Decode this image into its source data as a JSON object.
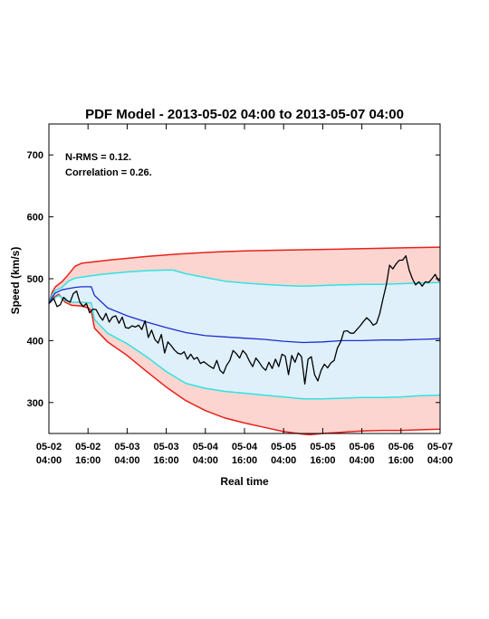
{
  "chart_data": {
    "type": "line",
    "title": "PDF Model - 2013-05-02 04:00 to 2013-05-07 04:00",
    "xlabel": "Real time",
    "ylabel": "Speed (km/s)",
    "xlim_hours": [
      0,
      120
    ],
    "ylim": [
      250,
      750
    ],
    "yticks": [
      300,
      400,
      500,
      600,
      700
    ],
    "xticks": [
      {
        "h": 0,
        "l1": "05-02",
        "l2": "04:00"
      },
      {
        "h": 12,
        "l1": "05-02",
        "l2": "16:00"
      },
      {
        "h": 24,
        "l1": "05-03",
        "l2": "04:00"
      },
      {
        "h": 36,
        "l1": "05-03",
        "l2": "16:00"
      },
      {
        "h": 48,
        "l1": "05-04",
        "l2": "04:00"
      },
      {
        "h": 60,
        "l1": "05-04",
        "l2": "16:00"
      },
      {
        "h": 72,
        "l1": "05-05",
        "l2": "04:00"
      },
      {
        "h": 84,
        "l1": "05-05",
        "l2": "16:00"
      },
      {
        "h": 96,
        "l1": "05-06",
        "l2": "04:00"
      },
      {
        "h": 108,
        "l1": "05-06",
        "l2": "16:00"
      },
      {
        "h": 120,
        "l1": "05-07",
        "l2": "04:00"
      }
    ],
    "annotations": [
      "N-RMS = 0.12.",
      "Correlation = 0.26."
    ],
    "colors": {
      "outer_band": "#fdd5d0",
      "inner_band": "#dff0fb",
      "outer_line": "#e8211b",
      "inner_line": "#2fe3e3",
      "median": "#1a2fcf",
      "observed": "#000000"
    },
    "bands": {
      "upper_outer": [
        [
          0,
          460
        ],
        [
          1,
          478
        ],
        [
          2,
          487
        ],
        [
          4,
          495
        ],
        [
          6,
          507
        ],
        [
          8,
          520
        ],
        [
          10,
          525
        ],
        [
          20,
          531
        ],
        [
          30,
          536
        ],
        [
          40,
          540
        ],
        [
          50,
          543
        ],
        [
          60,
          545
        ],
        [
          70,
          546
        ],
        [
          80,
          547
        ],
        [
          90,
          548
        ],
        [
          100,
          549
        ],
        [
          110,
          550
        ],
        [
          120,
          551
        ]
      ],
      "lower_outer": [
        [
          0,
          460
        ],
        [
          1,
          468
        ],
        [
          3,
          475
        ],
        [
          5,
          462
        ],
        [
          7,
          457
        ],
        [
          10,
          456
        ],
        [
          12,
          453
        ],
        [
          13,
          448
        ],
        [
          14,
          420
        ],
        [
          18,
          398
        ],
        [
          24,
          376
        ],
        [
          30,
          350
        ],
        [
          36,
          325
        ],
        [
          42,
          303
        ],
        [
          48,
          287
        ],
        [
          54,
          275
        ],
        [
          60,
          267
        ],
        [
          66,
          260
        ],
        [
          72,
          253
        ],
        [
          78,
          249
        ],
        [
          80,
          248
        ],
        [
          84,
          250
        ],
        [
          90,
          252
        ],
        [
          96,
          254
        ],
        [
          102,
          255
        ],
        [
          108,
          255
        ],
        [
          114,
          256
        ],
        [
          120,
          257
        ]
      ],
      "upper_inner": [
        [
          0,
          460
        ],
        [
          1,
          474
        ],
        [
          2,
          481
        ],
        [
          4,
          486
        ],
        [
          6,
          496
        ],
        [
          8,
          501
        ],
        [
          12,
          504
        ],
        [
          16,
          507
        ],
        [
          20,
          509
        ],
        [
          24,
          511
        ],
        [
          30,
          513
        ],
        [
          36,
          514
        ],
        [
          38,
          514
        ],
        [
          42,
          508
        ],
        [
          48,
          502
        ],
        [
          54,
          496
        ],
        [
          60,
          493
        ],
        [
          66,
          491
        ],
        [
          72,
          489
        ],
        [
          78,
          488
        ],
        [
          84,
          489
        ],
        [
          90,
          490
        ],
        [
          96,
          491
        ],
        [
          102,
          491
        ],
        [
          108,
          492
        ],
        [
          114,
          493
        ],
        [
          120,
          494
        ]
      ],
      "lower_inner": [
        [
          0,
          460
        ],
        [
          1,
          466
        ],
        [
          3,
          473
        ],
        [
          5,
          465
        ],
        [
          7,
          462
        ],
        [
          10,
          462
        ],
        [
          13,
          461
        ],
        [
          14,
          434
        ],
        [
          18,
          412
        ],
        [
          24,
          395
        ],
        [
          30,
          374
        ],
        [
          36,
          350
        ],
        [
          42,
          331
        ],
        [
          48,
          323
        ],
        [
          54,
          318
        ],
        [
          60,
          315
        ],
        [
          66,
          312
        ],
        [
          72,
          309
        ],
        [
          78,
          306
        ],
        [
          84,
          306
        ],
        [
          90,
          307
        ],
        [
          96,
          308
        ],
        [
          102,
          308
        ],
        [
          108,
          309
        ],
        [
          114,
          311
        ],
        [
          120,
          312
        ]
      ]
    },
    "series": [
      {
        "key": "median",
        "values": [
          [
            0,
            460
          ],
          [
            1,
            470
          ],
          [
            2,
            477
          ],
          [
            4,
            482
          ],
          [
            6,
            484
          ],
          [
            8,
            486
          ],
          [
            10,
            487
          ],
          [
            12,
            487
          ],
          [
            13,
            487
          ],
          [
            14,
            473
          ],
          [
            18,
            453
          ],
          [
            24,
            440
          ],
          [
            30,
            430
          ],
          [
            36,
            421
          ],
          [
            42,
            413
          ],
          [
            48,
            408
          ],
          [
            54,
            406
          ],
          [
            60,
            404
          ],
          [
            66,
            402
          ],
          [
            72,
            399
          ],
          [
            78,
            397
          ],
          [
            84,
            398
          ],
          [
            90,
            400
          ],
          [
            96,
            400
          ],
          [
            102,
            401
          ],
          [
            108,
            401
          ],
          [
            114,
            402
          ],
          [
            120,
            403
          ]
        ]
      },
      {
        "key": "observed",
        "values": [
          [
            0,
            460
          ],
          [
            1.5,
            468
          ],
          [
            2.5,
            455
          ],
          [
            3.5,
            458
          ],
          [
            4.5,
            470
          ],
          [
            5.5,
            465
          ],
          [
            6.5,
            462
          ],
          [
            7.5,
            476
          ],
          [
            8.5,
            480
          ],
          [
            9.5,
            462
          ],
          [
            10.5,
            455
          ],
          [
            11.5,
            460
          ],
          [
            12.5,
            445
          ],
          [
            13.5,
            451
          ],
          [
            14.5,
            450
          ],
          [
            15.5,
            440
          ],
          [
            16.5,
            433
          ],
          [
            17.5,
            444
          ],
          [
            18.5,
            430
          ],
          [
            19.5,
            438
          ],
          [
            20.5,
            440
          ],
          [
            21.5,
            428
          ],
          [
            22.5,
            438
          ],
          [
            23.5,
            421
          ],
          [
            24.5,
            420
          ],
          [
            25.5,
            424
          ],
          [
            26.5,
            422
          ],
          [
            27.5,
            425
          ],
          [
            28.5,
            418
          ],
          [
            29.5,
            432
          ],
          [
            30.5,
            405
          ],
          [
            31.5,
            417
          ],
          [
            32.5,
            402
          ],
          [
            33.5,
            396
          ],
          [
            34.5,
            410
          ],
          [
            35.5,
            380
          ],
          [
            36.5,
            398
          ],
          [
            37.5,
            392
          ],
          [
            38.5,
            385
          ],
          [
            39.5,
            380
          ],
          [
            40.5,
            378
          ],
          [
            41.5,
            382
          ],
          [
            42.5,
            370
          ],
          [
            43.5,
            378
          ],
          [
            44.5,
            370
          ],
          [
            45.5,
            373
          ],
          [
            46.5,
            363
          ],
          [
            47.5,
            366
          ],
          [
            48.5,
            362
          ],
          [
            49.5,
            358
          ],
          [
            50.5,
            355
          ],
          [
            51.5,
            368
          ],
          [
            52.5,
            352
          ],
          [
            53.5,
            347
          ],
          [
            54.5,
            360
          ],
          [
            55.5,
            368
          ],
          [
            56.5,
            384
          ],
          [
            57.5,
            379
          ],
          [
            58.5,
            372
          ],
          [
            59.5,
            384
          ],
          [
            60.5,
            378
          ],
          [
            61.5,
            367
          ],
          [
            62.5,
            358
          ],
          [
            63.5,
            372
          ],
          [
            64.5,
            365
          ],
          [
            65.5,
            357
          ],
          [
            66.5,
            352
          ],
          [
            67.5,
            365
          ],
          [
            68.5,
            355
          ],
          [
            69.5,
            370
          ],
          [
            70.5,
            358
          ],
          [
            71.5,
            378
          ],
          [
            72.5,
            375
          ],
          [
            73.5,
            345
          ],
          [
            74.5,
            376
          ],
          [
            75.5,
            365
          ],
          [
            76.5,
            380
          ],
          [
            77.5,
            374
          ],
          [
            78.5,
            330
          ],
          [
            79.5,
            370
          ],
          [
            80.5,
            374
          ],
          [
            81.5,
            345
          ],
          [
            82.5,
            335
          ],
          [
            83.5,
            352
          ],
          [
            84.5,
            362
          ],
          [
            85.5,
            356
          ],
          [
            86.5,
            364
          ],
          [
            87.5,
            368
          ],
          [
            88.5,
            388
          ],
          [
            89.5,
            398
          ],
          [
            90.5,
            415
          ],
          [
            91.5,
            416
          ],
          [
            92.5,
            412
          ],
          [
            93.5,
            412
          ],
          [
            94.5,
            418
          ],
          [
            95.5,
            424
          ],
          [
            96.5,
            431
          ],
          [
            97.5,
            437
          ],
          [
            98.5,
            432
          ],
          [
            99.5,
            425
          ],
          [
            100.5,
            428
          ],
          [
            101.5,
            444
          ],
          [
            102.5,
            468
          ],
          [
            103.5,
            490
          ],
          [
            104.5,
            522
          ],
          [
            105.5,
            516
          ],
          [
            106.5,
            524
          ],
          [
            107.5,
            530
          ],
          [
            108.5,
            530
          ],
          [
            109.5,
            537
          ],
          [
            110.5,
            514
          ],
          [
            111.5,
            500
          ],
          [
            112.5,
            490
          ],
          [
            113.5,
            495
          ],
          [
            114.5,
            488
          ],
          [
            115.5,
            495
          ],
          [
            116.5,
            494
          ],
          [
            117.5,
            500
          ],
          [
            118.5,
            507
          ],
          [
            119.5,
            497
          ],
          [
            120,
            498
          ]
        ]
      }
    ]
  }
}
